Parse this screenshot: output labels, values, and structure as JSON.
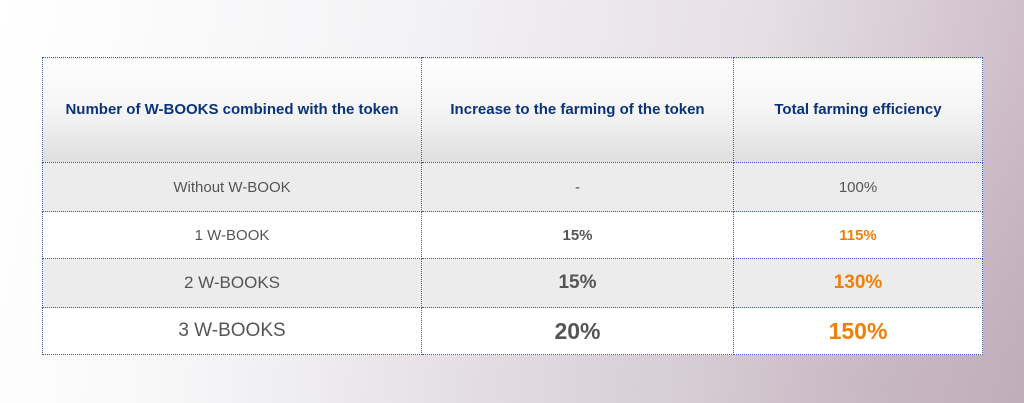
{
  "table": {
    "headers": [
      "Number of W-BOOKS combined with the token",
      "Increase to the farming of the token",
      "Total farming efficiency"
    ],
    "rows": [
      {
        "books": "Without W-BOOK",
        "increase": "-",
        "total": "100%"
      },
      {
        "books": "1 W-BOOK",
        "increase": "15%",
        "total": "115%"
      },
      {
        "books": "2 W-BOOKS",
        "increase": "15%",
        "total": "130%"
      },
      {
        "books": "3 W-BOOKS",
        "increase": "20%",
        "total": "150%"
      }
    ]
  },
  "colors": {
    "header_text": "#0b3478",
    "body_text": "#555555",
    "highlight": "#f07f08",
    "border": "#3a56b0"
  }
}
